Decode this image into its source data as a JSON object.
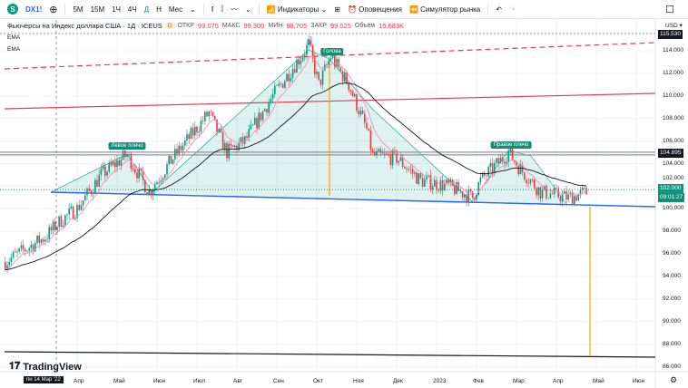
{
  "toolbar": {
    "symbol": "DX1!",
    "logo_letter": "S",
    "add_icon": "plus-circle-icon",
    "intervals": [
      "5М",
      "15М",
      "1Ч",
      "4Ч",
      "Д",
      "Н",
      "Мес"
    ],
    "active_interval": "Д",
    "indicators": "Индикаторы",
    "alerts": "Оповещения",
    "replay": "Симулятор рынка"
  },
  "legend": {
    "title": "Фьючерсы на Индекс доллара США · 1Д · ICEUS",
    "badge": "D",
    "open_label": "ОТКР",
    "open": "99.075",
    "high_label": "МАКС",
    "high": "99.300",
    "low_label": "МИН",
    "low": "98.705",
    "close_label": "ЗАКР",
    "close": "99.025",
    "vol_label": "Объём",
    "vol": "15.683K",
    "ema1": "EMA",
    "ema2": "EMA"
  },
  "axis": {
    "currency": "USD ▾",
    "top_badge": "115.530",
    "level_badge": "104.895",
    "price_badge": "102.000",
    "timer_badge": "09:01:27",
    "ticks": [
      "114.000",
      "112.000",
      "110.000",
      "108.000",
      "106.000",
      "104.000",
      "102.000",
      "100.000",
      "98.000",
      "96.000",
      "94.000",
      "92.000",
      "90.000",
      "88.000",
      "86.000"
    ]
  },
  "xaxis": {
    "crosshair": "пн 14 Мар '22",
    "labels": [
      "Апр",
      "Май",
      "Июн",
      "Июл",
      "Авг",
      "Сен",
      "Окт",
      "Ноя",
      "Дек",
      "2023",
      "Фев",
      "Мар",
      "Апр",
      "Май",
      "Июн"
    ]
  },
  "annotations": {
    "left": "Левое плечо",
    "head": "Голова",
    "right": "Правое плечо",
    "wave": "5"
  },
  "brand": "TradingView",
  "colors": {
    "up": "#089981",
    "down": "#f23645",
    "neckline": "#2962ff",
    "resistance": "#e53950"
  },
  "chart_data": {
    "type": "candlestick",
    "xunit": "months since 2022-03-01",
    "key_closes": [
      [
        -0.8,
        95.3
      ],
      [
        0.2,
        97.5
      ],
      [
        0.6,
        99
      ],
      [
        1,
        100
      ],
      [
        1.6,
        103
      ],
      [
        2.25,
        104.8
      ],
      [
        2.8,
        101.5
      ],
      [
        3.4,
        104.5
      ],
      [
        4.3,
        108.5
      ],
      [
        4.75,
        105
      ],
      [
        5.2,
        106
      ],
      [
        5.9,
        110
      ],
      [
        6.8,
        114.5
      ],
      [
        7.05,
        111
      ],
      [
        7.35,
        113.5
      ],
      [
        7.8,
        111
      ],
      [
        8.25,
        107
      ],
      [
        8.4,
        104.7
      ],
      [
        9,
        104.5
      ],
      [
        9.6,
        102.5
      ],
      [
        10.3,
        102
      ],
      [
        10.9,
        101
      ],
      [
        11.1,
        102.5
      ],
      [
        11.8,
        105
      ],
      [
        12.1,
        103.5
      ],
      [
        12.6,
        101.5
      ],
      [
        13.3,
        101
      ],
      [
        13.8,
        101.5
      ]
    ],
    "level": 104.895
  }
}
